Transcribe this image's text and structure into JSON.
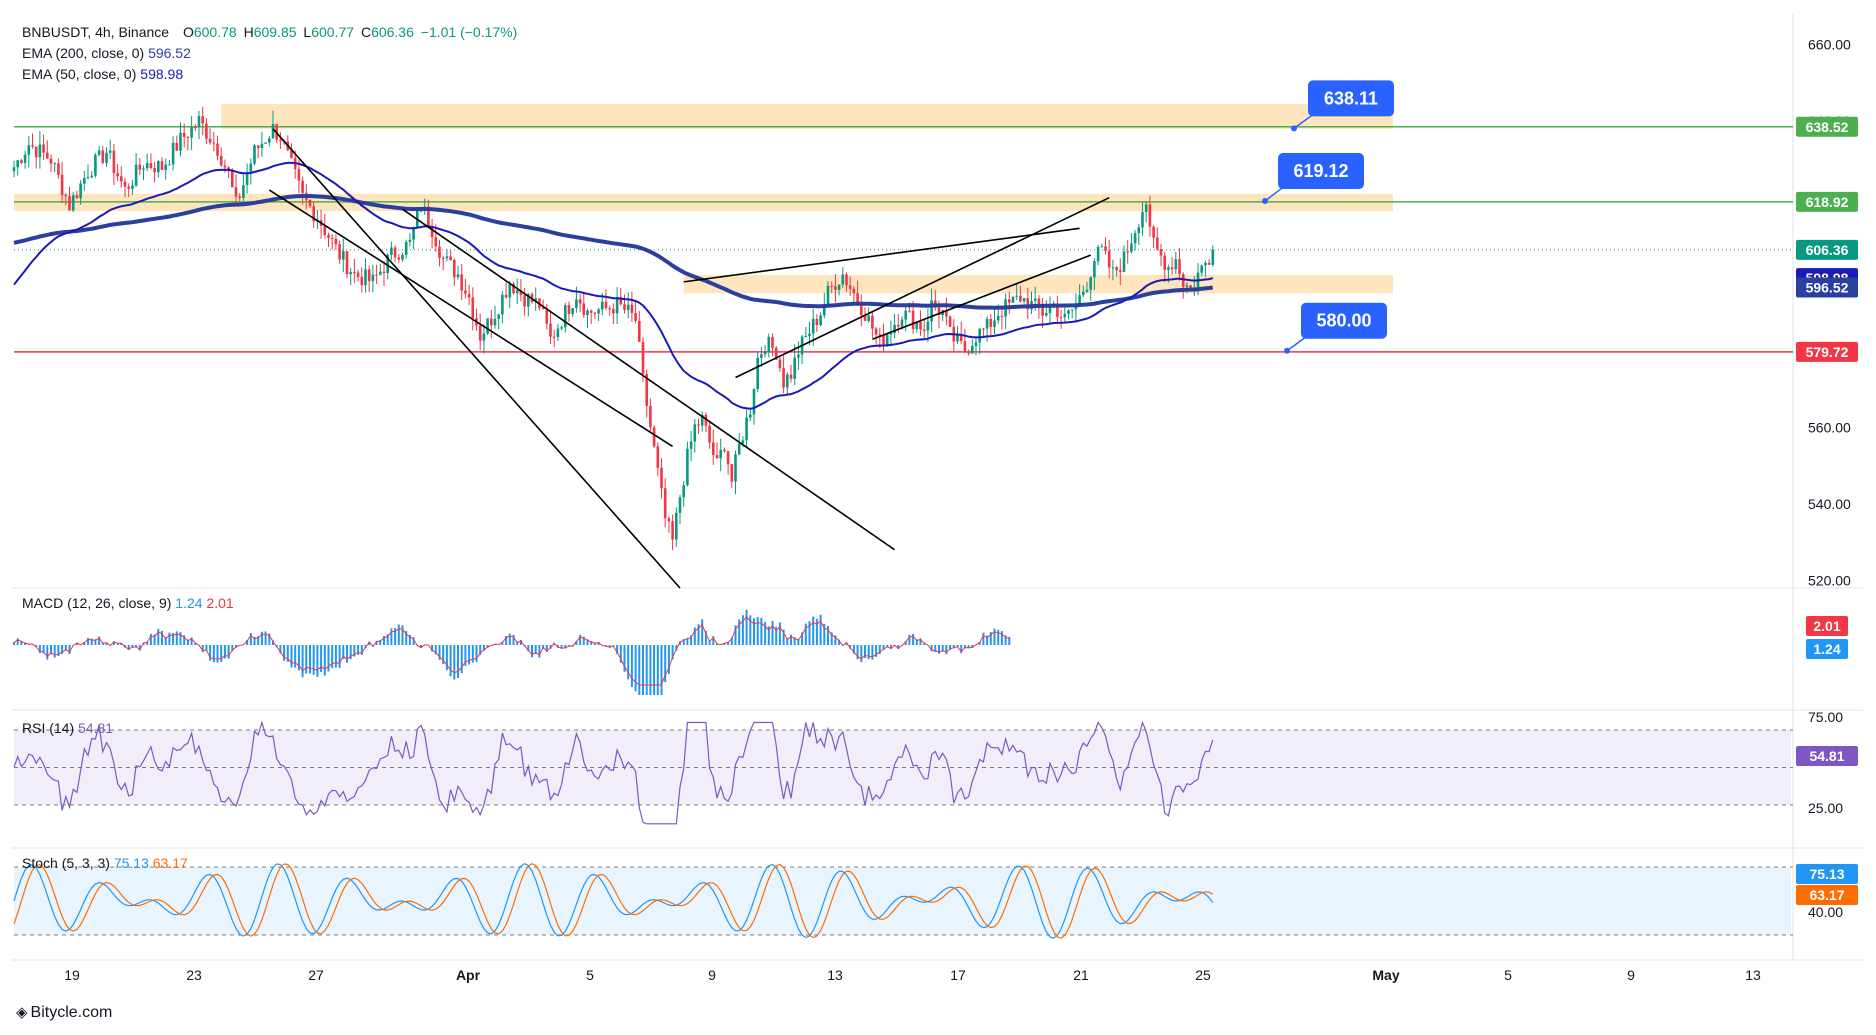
{
  "header": {
    "symbol_line": "BNBUSDT, 4h, Binance",
    "ohlc": [
      {
        "label": "O",
        "value": "600.78"
      },
      {
        "label": "H",
        "value": "609.85"
      },
      {
        "label": "L",
        "value": "600.77"
      },
      {
        "label": "C",
        "value": "606.36"
      }
    ],
    "change": "−1.01 (−0.17%)",
    "ema200_label": "EMA (200, close, 0)",
    "ema200_value": "596.52",
    "ema50_label": "EMA (50, close, 0)",
    "ema50_value": "598.98"
  },
  "panes": {
    "macd": {
      "label": "MACD (12, 26, close, 9)",
      "macd_value": "1.24",
      "signal_value": "2.01"
    },
    "rsi": {
      "label": "RSI (14)",
      "value": "54.81"
    },
    "stoch": {
      "label": "Stoch (5, 3, 3)",
      "k_value": "75.13",
      "d_value": "63.17"
    }
  },
  "callouts": [
    {
      "text": "638.11"
    },
    {
      "text": "619.12"
    },
    {
      "text": "580.00"
    }
  ],
  "axis_badges": [
    {
      "text": "638.52",
      "color": "#4caf50"
    },
    {
      "text": "618.92",
      "color": "#4caf50"
    },
    {
      "text": "606.36",
      "color": "#089981"
    },
    {
      "text": "598.98",
      "color": "#1a1ab5"
    },
    {
      "text": "596.52",
      "color": "#2b3f9e"
    },
    {
      "text": "579.72",
      "color": "#f23645"
    }
  ],
  "brand": {
    "text": "Bitycle.com",
    "icon": "bitycle-logo-icon"
  },
  "colors": {
    "up": "#089981",
    "down": "#f23645",
    "ema200": "#2b3f9e",
    "ema50": "#1a1ab5",
    "zone": "#ffe0b2",
    "support_line": "#f23645",
    "resistance_line": "#4caf50",
    "callout": "#2962ff"
  },
  "chart_data": [
    {
      "type": "candlestick",
      "title": "BNBUSDT, 4h, Binance",
      "y_ticks": [
        520,
        540,
        560,
        580,
        600,
        620,
        640,
        660
      ],
      "ylim": [
        518,
        668
      ],
      "x_tick_labels": [
        "19",
        "23",
        "27",
        "Apr",
        "5",
        "9",
        "13",
        "17",
        "21",
        "25",
        "May",
        "5",
        "9",
        "13"
      ],
      "last": {
        "open": 600.78,
        "high": 609.85,
        "low": 600.77,
        "close": 606.36,
        "change": -1.01,
        "change_pct": -0.17
      },
      "price_path": [
        [
          0,
          628
        ],
        [
          4,
          634
        ],
        [
          10,
          630
        ],
        [
          15,
          618
        ],
        [
          20,
          627
        ],
        [
          25,
          632
        ],
        [
          28,
          626
        ],
        [
          30,
          622
        ],
        [
          35,
          629
        ],
        [
          40,
          628
        ],
        [
          45,
          635
        ],
        [
          50,
          640
        ],
        [
          55,
          633
        ],
        [
          58,
          626
        ],
        [
          60,
          618
        ],
        [
          65,
          632
        ],
        [
          70,
          638
        ],
        [
          72,
          636
        ],
        [
          75,
          628
        ],
        [
          78,
          620
        ],
        [
          82,
          615
        ],
        [
          88,
          605
        ],
        [
          92,
          600
        ],
        [
          97,
          598
        ],
        [
          102,
          605
        ],
        [
          107,
          608
        ],
        [
          110,
          618
        ],
        [
          113,
          612
        ],
        [
          116,
          604
        ],
        [
          120,
          600
        ],
        [
          123,
          594
        ],
        [
          126,
          584
        ],
        [
          130,
          590
        ],
        [
          134,
          598
        ],
        [
          138,
          594
        ],
        [
          142,
          592
        ],
        [
          145,
          583
        ],
        [
          149,
          590
        ],
        [
          152,
          595
        ],
        [
          155,
          590
        ],
        [
          160,
          591
        ],
        [
          163,
          592
        ],
        [
          166,
          590
        ],
        [
          168,
          588
        ],
        [
          170,
          572
        ],
        [
          172,
          560
        ],
        [
          174,
          548
        ],
        [
          176,
          536
        ],
        [
          178,
          530
        ],
        [
          180,
          542
        ],
        [
          182,
          552
        ],
        [
          184,
          560
        ],
        [
          186,
          562
        ],
        [
          188,
          556
        ],
        [
          190,
          550
        ],
        [
          192,
          556
        ],
        [
          194,
          546
        ],
        [
          196,
          555
        ],
        [
          199,
          565
        ],
        [
          201,
          578
        ],
        [
          203,
          582
        ],
        [
          206,
          580
        ],
        [
          208,
          572
        ],
        [
          210,
          574
        ],
        [
          212,
          580
        ],
        [
          215,
          585
        ],
        [
          218,
          590
        ],
        [
          220,
          595
        ],
        [
          222,
          598
        ],
        [
          224,
          600
        ],
        [
          227,
          595
        ],
        [
          230,
          590
        ],
        [
          232,
          586
        ],
        [
          234,
          582
        ],
        [
          237,
          586
        ],
        [
          240,
          590
        ],
        [
          243,
          588
        ],
        [
          246,
          586
        ],
        [
          248,
          592
        ],
        [
          251,
          590
        ],
        [
          253,
          584
        ],
        [
          255,
          582
        ],
        [
          257,
          580
        ],
        [
          260,
          584
        ],
        [
          263,
          586
        ],
        [
          266,
          590
        ],
        [
          269,
          592
        ],
        [
          272,
          594
        ],
        [
          275,
          592
        ],
        [
          278,
          590
        ],
        [
          281,
          592
        ],
        [
          284,
          588
        ],
        [
          287,
          592
        ],
        [
          290,
          598
        ],
        [
          292,
          604
        ],
        [
          294,
          606
        ],
        [
          297,
          600
        ],
        [
          300,
          604
        ],
        [
          303,
          612
        ],
        [
          305,
          617
        ],
        [
          306,
          619
        ],
        [
          307,
          610
        ],
        [
          309,
          606
        ],
        [
          312,
          602
        ],
        [
          314,
          604
        ],
        [
          316,
          598
        ],
        [
          318,
          596
        ],
        [
          320,
          600
        ],
        [
          322,
          603
        ],
        [
          324,
          606
        ]
      ],
      "series": [
        {
          "name": "EMA (200, close, 0)",
          "last": 596.52
        },
        {
          "name": "EMA (50, close, 0)",
          "last": 598.98
        }
      ],
      "levels": [
        {
          "value": 638.52,
          "color": "#4caf50"
        },
        {
          "value": 618.92,
          "color": "#4caf50"
        },
        {
          "value": 579.72,
          "color": "#f23645"
        }
      ],
      "zones": [
        {
          "from": 638.0,
          "to": 644.5
        },
        {
          "from": 616.5,
          "to": 621.0
        },
        {
          "from": 595.0,
          "to": 599.8
        }
      ],
      "callouts": [
        {
          "text": "638.11",
          "value": 638.11
        },
        {
          "text": "619.12",
          "value": 619.12
        },
        {
          "text": "580.00",
          "value": 580.0
        }
      ]
    },
    {
      "type": "bar",
      "title": "MACD (12, 26, close, 9)",
      "series": [
        {
          "name": "MACD",
          "last": 1.24
        },
        {
          "name": "Signal",
          "last": 2.01
        }
      ]
    },
    {
      "type": "line",
      "title": "RSI (14)",
      "y_ticks": [
        25.0,
        75.0
      ],
      "band": [
        30,
        70
      ],
      "last": 54.81
    },
    {
      "type": "line",
      "title": "Stoch (5, 3, 3)",
      "y_ticks": [
        40.0
      ],
      "band": [
        20,
        80
      ],
      "series": [
        {
          "name": "%K",
          "last": 75.13
        },
        {
          "name": "%D",
          "last": 63.17
        }
      ]
    }
  ]
}
